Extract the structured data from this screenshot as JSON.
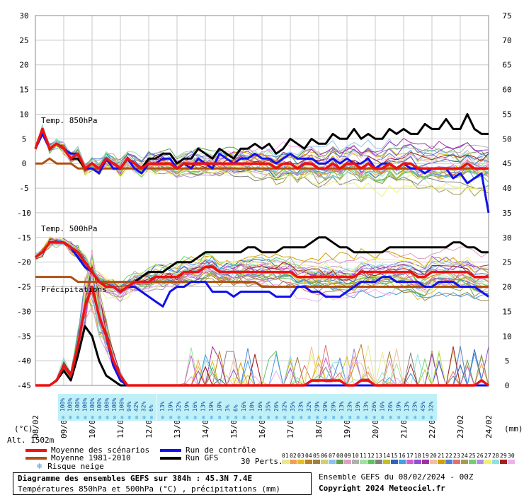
{
  "chart_data": {
    "type": "line",
    "title": "Diagramme des ensembles GEFS sur 384h : 45.3N 7.4E",
    "subtitle": "Températures 850hPa et 500hPa (°C) , précipitations (mm)",
    "ylabel_left": "(°C)",
    "ylabel_right": "(mm)",
    "ylim_left": [
      -45,
      30
    ],
    "ylim_right": [
      0,
      75
    ],
    "yticks_left": [
      30,
      25,
      20,
      15,
      10,
      5,
      0,
      -5,
      -10,
      -15,
      -20,
      -25,
      -30,
      -35,
      -40,
      -45
    ],
    "yticks_right": [
      75,
      70,
      65,
      60,
      55,
      50,
      45,
      40,
      35,
      30,
      25,
      20,
      15,
      10,
      5,
      0
    ],
    "x_dates": [
      "08/02",
      "09/02",
      "10/02",
      "11/02",
      "12/02",
      "13/02",
      "14/02",
      "15/02",
      "16/02",
      "17/02",
      "18/02",
      "19/02",
      "20/02",
      "21/02",
      "22/02",
      "23/02",
      "24/02"
    ],
    "panel_labels": [
      "Temp. 850hPa",
      "Temp. 500hPa",
      "Précipitations"
    ],
    "altitude": "Alt. 1502m",
    "snow_risk_left": [
      "100%",
      "100%",
      "100%",
      "100%",
      "100%",
      "100%",
      "100%",
      "100%",
      "100%",
      "94%",
      "42%",
      "32%",
      "6%"
    ],
    "snow_risk_right": [
      "13%",
      "19%",
      "32%",
      "19%",
      "16%",
      "13%",
      "19%",
      "10%",
      "3%",
      "6%",
      "16%",
      "10%",
      "16%",
      "35%",
      "26%",
      "32%",
      "35%",
      "23%",
      "32%",
      "29%",
      "29%",
      "29%",
      "13%",
      "23%",
      "19%",
      "13%",
      "26%",
      "16%",
      "26%",
      "19%",
      "13%",
      "23%",
      "45%",
      "32%"
    ],
    "series": [
      {
        "name": "Moyenne des scénarios",
        "color": "#ee1111",
        "t850": [
          3,
          7,
          3,
          4,
          3,
          1,
          2,
          -1,
          0,
          -1,
          1,
          0,
          -1,
          1,
          0,
          -1,
          0,
          0,
          0,
          0,
          -1,
          0,
          0,
          0,
          0,
          0,
          0,
          0,
          0,
          0,
          0,
          0,
          0,
          0,
          -1,
          0,
          0,
          -1,
          0,
          0,
          -1,
          -1,
          0,
          -1,
          0,
          0,
          -1,
          0,
          -1,
          -1,
          0,
          -1,
          0,
          0,
          -1,
          -1,
          -1,
          -1,
          -1,
          -1,
          -1,
          0,
          -1,
          -1,
          -1
        ],
        "t500": [
          -19,
          -18,
          -16,
          -16,
          -16,
          -17,
          -18,
          -20,
          -22,
          -24,
          -25,
          -25,
          -26,
          -25,
          -24,
          -24,
          -24,
          -23,
          -23,
          -23,
          -23,
          -22,
          -22,
          -22,
          -21,
          -21,
          -22,
          -22,
          -22,
          -22,
          -22,
          -22,
          -22,
          -22,
          -22,
          -22,
          -22,
          -23,
          -23,
          -23,
          -23,
          -23,
          -23,
          -23,
          -23,
          -23,
          -22,
          -22,
          -22,
          -22,
          -22,
          -22,
          -22,
          -22,
          -23,
          -23,
          -22,
          -22,
          -22,
          -22,
          -22,
          -22,
          -23,
          -23,
          -23
        ],
        "precip": [
          0,
          0,
          0,
          1,
          4,
          2,
          8,
          16,
          20,
          14,
          10,
          5,
          2,
          0,
          0,
          0,
          0,
          0,
          0,
          0,
          0,
          0,
          0,
          0,
          0,
          0,
          0,
          0,
          0,
          0,
          0,
          0,
          0,
          0,
          0,
          0,
          0,
          0,
          0,
          1,
          1,
          1,
          1,
          1,
          0,
          0,
          1,
          1,
          0,
          0,
          0,
          0,
          0,
          0,
          0,
          0,
          0,
          0,
          0,
          0,
          0,
          0,
          0,
          1,
          0
        ]
      },
      {
        "name": "Moyenne 1981-2010",
        "color": "#b05010",
        "t850": [
          0,
          0,
          1,
          0,
          0,
          0,
          -1,
          -1,
          -1,
          -1,
          -1,
          -1,
          -1,
          -1,
          -1,
          -1,
          -1,
          -1,
          -1,
          -1,
          -1,
          -1,
          -1,
          -1,
          -1,
          -1,
          -1,
          -1,
          -1,
          -1,
          -1,
          -1,
          -1,
          -1,
          -1,
          -1,
          -1,
          -1,
          -1,
          -1,
          -1,
          -1,
          -1,
          -1,
          -1,
          -1,
          -1,
          -1,
          -1,
          -1,
          -1,
          -1,
          -1,
          -1,
          -1,
          -1,
          -1,
          -1,
          -1,
          -1,
          -1,
          -1,
          -1,
          -1,
          -1
        ],
        "t500": [
          -23,
          -23,
          -23,
          -23,
          -23,
          -23,
          -24,
          -24,
          -24,
          -24,
          -24,
          -24,
          -24,
          -24,
          -24,
          -24,
          -24,
          -24,
          -24,
          -24,
          -24,
          -24,
          -24,
          -24,
          -24,
          -24,
          -24,
          -24,
          -24,
          -24,
          -24,
          -24,
          -25,
          -25,
          -25,
          -25,
          -25,
          -25,
          -25,
          -25,
          -25,
          -25,
          -25,
          -25,
          -25,
          -25,
          -25,
          -25,
          -25,
          -25,
          -25,
          -25,
          -25,
          -25,
          -25,
          -25,
          -25,
          -25,
          -25,
          -25,
          -25,
          -25,
          -25,
          -25,
          -25
        ]
      },
      {
        "name": "Run de contrôle",
        "color": "#1111ee",
        "t850": [
          3,
          6,
          3,
          4,
          3,
          2,
          2,
          -1,
          -1,
          -2,
          1,
          -1,
          -1,
          1,
          -1,
          -2,
          0,
          0,
          1,
          1,
          -1,
          0,
          -1,
          1,
          0,
          -1,
          2,
          1,
          0,
          1,
          1,
          2,
          1,
          1,
          0,
          1,
          2,
          1,
          1,
          1,
          0,
          0,
          1,
          0,
          1,
          0,
          0,
          1,
          -1,
          0,
          0,
          -1,
          0,
          -1,
          -1,
          -2,
          -1,
          -1,
          -1,
          -3,
          -2,
          -4,
          -3,
          -2,
          -10
        ],
        "t500": [
          -19,
          -18,
          -16,
          -16,
          -16,
          -17,
          -19,
          -21,
          -22,
          -24,
          -25,
          -25,
          -26,
          -25,
          -25,
          -26,
          -27,
          -28,
          -29,
          -26,
          -25,
          -25,
          -24,
          -24,
          -24,
          -26,
          -26,
          -26,
          -27,
          -26,
          -26,
          -26,
          -26,
          -26,
          -27,
          -27,
          -27,
          -25,
          -25,
          -26,
          -26,
          -27,
          -27,
          -27,
          -26,
          -25,
          -24,
          -24,
          -24,
          -23,
          -23,
          -24,
          -24,
          -24,
          -24,
          -25,
          -25,
          -24,
          -24,
          -24,
          -25,
          -25,
          -25,
          -26,
          -27
        ],
        "precip": [
          0,
          0,
          0,
          1,
          4,
          2,
          8,
          16,
          20,
          14,
          10,
          4,
          1,
          0,
          0,
          0,
          0,
          0,
          0,
          0,
          0,
          0,
          0,
          0,
          0,
          0,
          0,
          0,
          0,
          0,
          0,
          0,
          0,
          0,
          0,
          0,
          0,
          0,
          0,
          0,
          0,
          0,
          0,
          0,
          0,
          0,
          0,
          0,
          0,
          0,
          0,
          0,
          0,
          0,
          0,
          0,
          0,
          0,
          0,
          0,
          0,
          0,
          0,
          0,
          0
        ]
      },
      {
        "name": "Run GFS",
        "color": "#000000",
        "t850": [
          3,
          7,
          3,
          4,
          3,
          1,
          1,
          -1,
          0,
          -1,
          1,
          0,
          -1,
          1,
          0,
          -1,
          1,
          1,
          2,
          2,
          0,
          1,
          1,
          3,
          2,
          1,
          3,
          2,
          1,
          3,
          3,
          4,
          3,
          4,
          2,
          3,
          5,
          4,
          3,
          5,
          4,
          4,
          6,
          5,
          5,
          7,
          5,
          6,
          5,
          5,
          7,
          6,
          7,
          6,
          6,
          8,
          7,
          7,
          9,
          7,
          7,
          10,
          7,
          6,
          6
        ],
        "t500": [
          -19,
          -18,
          -16,
          -16,
          -16,
          -17,
          -19,
          -21,
          -22,
          -24,
          -25,
          -25,
          -26,
          -25,
          -24,
          -23,
          -22,
          -22,
          -22,
          -21,
          -20,
          -20,
          -20,
          -19,
          -18,
          -18,
          -18,
          -18,
          -18,
          -18,
          -17,
          -17,
          -18,
          -18,
          -18,
          -17,
          -17,
          -17,
          -17,
          -16,
          -15,
          -15,
          -16,
          -17,
          -17,
          -18,
          -18,
          -18,
          -18,
          -18,
          -17,
          -17,
          -17,
          -17,
          -17,
          -17,
          -17,
          -17,
          -17,
          -16,
          -16,
          -17,
          -17,
          -18,
          -18
        ],
        "precip": [
          0,
          0,
          0,
          1,
          3,
          1,
          6,
          12,
          10,
          5,
          2,
          1,
          0,
          0,
          0,
          0,
          0,
          0,
          0,
          0,
          0,
          0,
          0,
          0,
          0,
          0,
          0,
          0,
          0,
          0,
          0,
          0,
          0,
          0,
          0,
          0,
          0,
          0,
          0,
          0,
          0,
          0,
          0,
          0,
          0,
          0,
          0,
          0,
          0,
          0,
          0,
          0,
          0,
          0,
          0,
          0,
          0,
          0,
          0,
          0,
          0,
          0,
          0,
          0,
          0
        ]
      }
    ],
    "perturbations_label": "30 Perts.",
    "perturbation_ids": [
      "01",
      "02",
      "03",
      "04",
      "05",
      "06",
      "07",
      "08",
      "09",
      "10",
      "11",
      "12",
      "13",
      "14",
      "15",
      "16",
      "17",
      "18",
      "19",
      "20",
      "21",
      "22",
      "23",
      "24",
      "25",
      "26",
      "27",
      "28",
      "29",
      "30"
    ],
    "perturbation_colors": [
      "#e8e890",
      "#f0a050",
      "#e0c020",
      "#c08020",
      "#a08040",
      "#d0d070",
      "#90c0f0",
      "#60a050",
      "#e0a0c0",
      "#b0b0b0",
      "#a0e0a0",
      "#60c060",
      "#808080",
      "#c0c020",
      "#3060c0",
      "#40a0e0",
      "#d060d0",
      "#9050d0",
      "#a030a0",
      "#f0c0a0",
      "#d0a000",
      "#5080d0",
      "#e07070",
      "#a0a050",
      "#70d070",
      "#b090e0",
      "#f0f070",
      "#90e0e0",
      "#a02020",
      "#f0b0f0"
    ],
    "legend_position": "bottom-left"
  },
  "legend": {
    "mean": "Moyenne des scénarios",
    "climo": "Moyenne 1981-2010",
    "snow": "Risque neige",
    "control": "Run de contrôle",
    "gfs": "Run GFS",
    "perts": "30 Perts."
  },
  "footer": {
    "title": "Diagramme des ensembles GEFS sur 384h : 45.3N 7.4E",
    "subtitle": "Températures 850hPa et 500hPa (°C) , précipitations (mm)",
    "run": "Ensemble GEFS du 08/02/2024 - 00Z",
    "copyright": "Copyright 2024 Meteociel.fr"
  }
}
